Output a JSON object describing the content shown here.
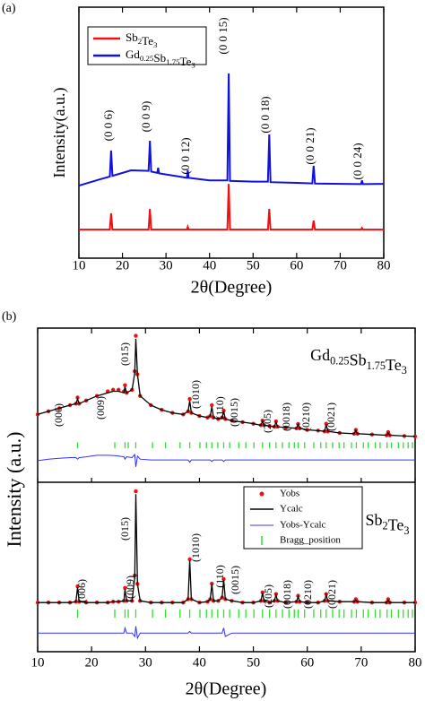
{
  "chart_data": [
    {
      "type": "line",
      "panel_label": "(a)",
      "xlabel": "2θ(Degree)",
      "ylabel": "Intensity(a.u.)",
      "xlim": [
        10,
        80
      ],
      "xticks": [
        10,
        20,
        30,
        40,
        50,
        60,
        70,
        80
      ],
      "ylim": [
        0,
        100
      ],
      "legend": "upper left",
      "series": [
        {
          "name": "Sb2Te3",
          "color": "#ee1111",
          "x": [
            10,
            17.1,
            17.4,
            17.7,
            26,
            26.3,
            26.6,
            34.8,
            35,
            35.2,
            44.1,
            44.4,
            44.7,
            53.4,
            53.7,
            54,
            63.6,
            63.9,
            64.2,
            74.8,
            75,
            75.2,
            80
          ],
          "values": [
            11.4,
            11.4,
            17.9,
            11.4,
            11.4,
            19.6,
            11.4,
            11.4,
            12.5,
            11.4,
            11.4,
            29.6,
            11.4,
            11.4,
            19.6,
            11.4,
            11.4,
            15,
            11.4,
            11.4,
            12,
            11.4,
            11.4
          ]
        },
        {
          "name": "Gd0.25Sb1.75Te3",
          "color": "#1111dd",
          "x": [
            10,
            15,
            17.1,
            17.4,
            17.7,
            22,
            26,
            26.3,
            26.6,
            28,
            28.2,
            28.4,
            34.8,
            35,
            35.2,
            40,
            44.1,
            44.4,
            44.7,
            50,
            53.4,
            53.7,
            54,
            60,
            63.6,
            63.9,
            64.2,
            74.8,
            75,
            75.2,
            80
          ],
          "values": [
            28.9,
            31.5,
            32.5,
            42.9,
            32.8,
            35,
            34.8,
            46.8,
            34.5,
            34,
            36,
            33.8,
            32,
            35,
            32,
            31,
            31,
            73.6,
            30.8,
            30.5,
            30.5,
            49.3,
            30.3,
            30,
            29.8,
            36.8,
            29.7,
            29.5,
            31,
            29.5,
            29.6
          ]
        }
      ],
      "annotations": [
        "(0 0 6)",
        "(0 0 9)",
        "(0 0 12)",
        "(0 0 15)",
        "(0 0 18)",
        "(0 0 21)",
        "(0 0 24)"
      ]
    },
    {
      "type": "refinement",
      "panel_label": "(b)",
      "xlabel": "2θ(Degree)",
      "ylabel": "Intensity (a.u.)",
      "xlim": [
        10,
        80
      ],
      "xticks": [
        10,
        20,
        30,
        40,
        50,
        60,
        70,
        80
      ],
      "x": [
        10,
        12,
        14,
        16,
        17.1,
        17.4,
        17.7,
        19,
        21,
        23,
        24,
        25,
        26,
        26.2,
        26.5,
        27.5,
        28.0,
        28.2,
        28.5,
        29,
        31,
        33,
        35,
        37,
        37.9,
        38.2,
        38.5,
        40,
        41.5,
        42.0,
        42.3,
        42.6,
        43.5,
        44.2,
        44.5,
        44.8,
        46,
        48,
        50,
        51.4,
        51.7,
        52,
        53,
        53.9,
        54.2,
        54.5,
        56,
        58.0,
        58.3,
        58.6,
        60,
        62,
        63.2,
        63.5,
        63.8,
        66,
        68.7,
        69,
        69.3,
        72,
        74.7,
        75,
        75.3,
        78,
        80
      ],
      "subplots": [
        {
          "label": "Gd0.25Sb1.75Te3",
          "ylim": [
            0,
            100
          ],
          "series": [
            {
              "color": "#ee1111",
              "values": [
                44,
                46,
                48,
                50,
                51,
                55,
                51,
                53,
                56,
                59,
                60,
                60,
                59,
                63,
                58,
                60,
                72,
                95,
                70,
                56,
                50,
                47,
                45,
                44,
                46,
                54,
                45,
                43,
                42,
                43,
                50,
                42,
                41,
                42,
                46.5,
                41,
                40,
                39,
                38,
                37,
                40,
                37,
                36.5,
                36,
                39.5,
                36,
                35.5,
                35,
                37.8,
                35,
                34,
                33.5,
                33,
                38,
                33,
                32,
                31.5,
                34,
                31.5,
                31,
                30.5,
                32.5,
                30.5,
                30,
                29.7
              ]
            },
            {
              "color": "#000000",
              "values": [
                44,
                46,
                48,
                50,
                51,
                54,
                51,
                53,
                56,
                58,
                59,
                59,
                58,
                62,
                58,
                60,
                71,
                93,
                70,
                56,
                50,
                47,
                45,
                44,
                46,
                53,
                45,
                43,
                42,
                43,
                49,
                42,
                41,
                42,
                46,
                41,
                40,
                39,
                38,
                37,
                39.5,
                37,
                36.5,
                36,
                39,
                36,
                35.5,
                35,
                37.5,
                35,
                34,
                33.5,
                33,
                37.5,
                33,
                32,
                31.5,
                33.5,
                31.5,
                31,
                30.5,
                32,
                30.5,
                30,
                29.7
              ]
            },
            {
              "color": "#3333ff",
              "values": [
                14,
                15,
                15.5,
                16,
                16,
                15,
                16,
                16.5,
                17.5,
                17.5,
                17.4,
                17,
                16.5,
                15,
                16.5,
                16,
                18,
                10,
                17,
                15,
                14.5,
                14.5,
                14.5,
                14.5,
                14.5,
                13,
                14.5,
                14.5,
                14.5,
                14.5,
                13.5,
                14.5,
                14.5,
                14.5,
                13.5,
                14.5,
                14.5,
                14.5,
                14.5,
                14.5,
                14.5,
                14.5,
                14.5,
                14.5,
                14.5,
                14.5,
                14.5,
                14.5,
                14.5,
                14.5,
                14.5,
                14.5,
                14.5,
                14.5,
                14.5,
                14.5,
                14.5,
                14.5,
                14.5,
                14.5,
                14.5,
                14.5,
                14.5,
                14.5,
                14.5
              ]
            }
          ],
          "bragg": {
            "color": "#33dd33",
            "positions": [
              17.4,
              24.3,
              26.2,
              26.8,
              28.2,
              31.3,
              33.7,
              36.4,
              38.2,
              40.1,
              41.3,
              42.3,
              43.4,
              44.5,
              45.6,
              47.3,
              48.6,
              50.1,
              51.7,
              53.0,
              54.2,
              55.4,
              56.6,
              57.6,
              58.3,
              59.5,
              61.2,
              62.5,
              63.5,
              64.7,
              65.9,
              66.8,
              68.2,
              69.1,
              70.4,
              71.3,
              72.6,
              73.5,
              74.8,
              75.6,
              76.9,
              77.8,
              78.7,
              79.5
            ]
          },
          "annotations": [
            "(006)",
            "(009)",
            "(015)",
            "(1010)",
            "(110)",
            "(0015)",
            "(205)",
            "(0018)",
            "(0210)",
            "(0021)"
          ]
        },
        {
          "label": "Sb2Te3",
          "ylim": [
            0,
            100
          ],
          "legend": "upper center",
          "series": [
            {
              "name": "Yobs",
              "color": "#ee1111",
              "values": [
                29,
                29,
                29,
                29,
                29.5,
                38.6,
                29.5,
                29,
                29,
                29,
                29.5,
                29.5,
                30,
                37.6,
                30,
                30,
                45,
                94.7,
                40,
                30,
                29,
                29,
                29,
                29,
                31,
                54.5,
                31,
                29,
                29.5,
                31,
                40.2,
                30,
                30,
                32,
                42.9,
                31,
                30,
                29,
                29,
                30,
                35,
                30,
                29,
                30,
                34,
                30,
                29,
                29.5,
                33,
                29.5,
                29,
                29,
                30,
                34,
                30,
                29.5,
                29.5,
                31,
                29.5,
                29,
                29,
                31,
                29,
                29,
                29
              ]
            },
            {
              "name": "Ycalc",
              "color": "#000000",
              "values": [
                29,
                29,
                29,
                29,
                29.5,
                38,
                29.5,
                29,
                29,
                29,
                29.5,
                29.5,
                30,
                37,
                30,
                30,
                44,
                93,
                40,
                30,
                29,
                29,
                29,
                29,
                31,
                54,
                31,
                29,
                29.5,
                31,
                40,
                30,
                30,
                32,
                42.5,
                31,
                30,
                29,
                29,
                30,
                34.5,
                30,
                29,
                30,
                33.5,
                30,
                29,
                29.5,
                32.5,
                29.5,
                29,
                29,
                30,
                33.5,
                30,
                29.5,
                29.5,
                30.5,
                29.5,
                29,
                29,
                30.5,
                29,
                29,
                29
              ]
            },
            {
              "name": "Yobs-Ycalc",
              "color": "#3333ff",
              "values": [
                11,
                11,
                11,
                11,
                11,
                11,
                11,
                11,
                11,
                11,
                11,
                11,
                11,
                14,
                11,
                11,
                9,
                15,
                8,
                11,
                11,
                11,
                11,
                11,
                11,
                12,
                11,
                11,
                11,
                11,
                11,
                11,
                11,
                11,
                14,
                9,
                11,
                11,
                11,
                11,
                11,
                11,
                11,
                11,
                11,
                11,
                11,
                11,
                11,
                11,
                11,
                11,
                11,
                11,
                11,
                11,
                11,
                11,
                11,
                11,
                11,
                11,
                11,
                11,
                11
              ]
            }
          ],
          "bragg": {
            "name": "Bragg_position",
            "color": "#33dd33",
            "positions": [
              17.4,
              24.3,
              26.2,
              26.8,
              28.2,
              31.3,
              33.7,
              36.4,
              38.2,
              40.1,
              41.3,
              42.3,
              43.4,
              44.5,
              45.6,
              47.3,
              48.6,
              50.1,
              51.7,
              53.0,
              54.2,
              55.4,
              56.6,
              57.6,
              58.3,
              59.5,
              61.2,
              62.5,
              63.5,
              64.7,
              65.9,
              66.8,
              68.2,
              69.1,
              70.4,
              71.3,
              72.6,
              73.5,
              74.8,
              75.6,
              76.9,
              77.8,
              78.7,
              79.5
            ]
          },
          "annotations": [
            "(006)",
            "(009)",
            "(015)",
            "(1010)",
            "(110)",
            "(0015)",
            "(205)",
            "(0018)",
            "(0210)",
            "(0021)"
          ]
        }
      ]
    }
  ]
}
